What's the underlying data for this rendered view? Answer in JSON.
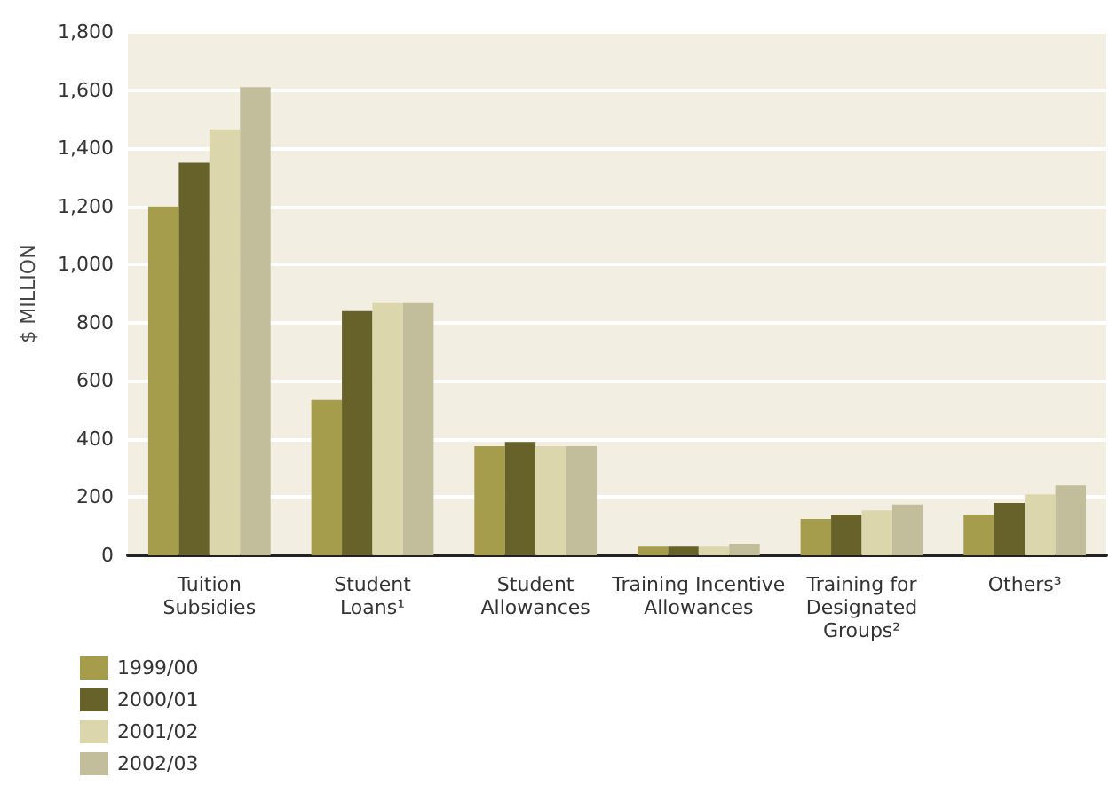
{
  "chart_data": {
    "type": "bar",
    "ylabel": "$ MILLION",
    "categories": [
      "Tuition\nSubsidies",
      "Student\nLoans¹",
      "Student\nAllowances",
      "Training Incentive\nAllowances",
      "Training for\nDesignated\nGroups²",
      "Others³"
    ],
    "series": [
      {
        "name": "1999/00",
        "color": "#a59c4c",
        "values": [
          1200,
          535,
          375,
          30,
          125,
          140
        ]
      },
      {
        "name": "2000/01",
        "color": "#67622a",
        "values": [
          1350,
          840,
          390,
          30,
          140,
          180
        ]
      },
      {
        "name": "2001/02",
        "color": "#dcd6ad",
        "values": [
          1465,
          870,
          375,
          30,
          155,
          210
        ]
      },
      {
        "name": "2002/03",
        "color": "#c2bd9a",
        "values": [
          1610,
          870,
          375,
          40,
          175,
          240
        ]
      }
    ],
    "ylim": [
      0,
      1800
    ],
    "yticks": [
      0,
      200,
      400,
      600,
      800,
      {
        "value": 1000,
        "label": "1,000"
      },
      {
        "value": 1200,
        "label": "1,200"
      },
      {
        "value": 1400,
        "label": "1,400"
      },
      {
        "value": 1600,
        "label": "1,600"
      },
      {
        "value": 1800,
        "label": "1,800"
      }
    ],
    "grid": "y",
    "legend": "bottom left"
  }
}
